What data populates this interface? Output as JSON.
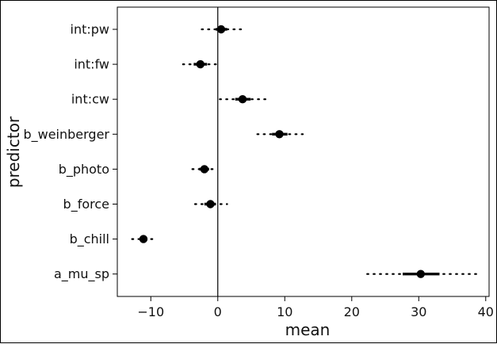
{
  "chart_data": {
    "type": "scatter",
    "subtype": "coefficient interval plot",
    "title": "",
    "xlabel": "mean",
    "ylabel": "predictor",
    "xlim": [
      -15,
      40.5
    ],
    "x_ticks": [
      -10,
      0,
      10,
      20,
      30,
      40
    ],
    "reference_line_x": 0,
    "grid": false,
    "legend": "none",
    "series": [
      {
        "categories": [
          "int:pw",
          "int:fw",
          "int:cw",
          "b_weinberger",
          "b_photo",
          "b_force",
          "b_chill",
          "a_mu_sp"
        ],
        "mean": [
          0.5,
          -2.6,
          3.7,
          9.2,
          -2.0,
          -1.1,
          -11.1,
          30.3
        ],
        "inner_low": [
          -0.3,
          -3.6,
          2.6,
          8.1,
          -2.8,
          -2.0,
          -11.6,
          27.6
        ],
        "inner_high": [
          1.4,
          -1.6,
          4.9,
          10.4,
          -1.3,
          -0.3,
          -10.6,
          33.1
        ],
        "outer_low": [
          -2.4,
          -5.2,
          0.3,
          5.9,
          -3.8,
          -3.4,
          -12.8,
          22.3
        ],
        "outer_high": [
          3.6,
          0.2,
          7.3,
          12.7,
          -0.1,
          1.4,
          -9.2,
          39.0
        ]
      }
    ],
    "colors": {
      "points": "#000000",
      "axes": "#000000"
    }
  }
}
